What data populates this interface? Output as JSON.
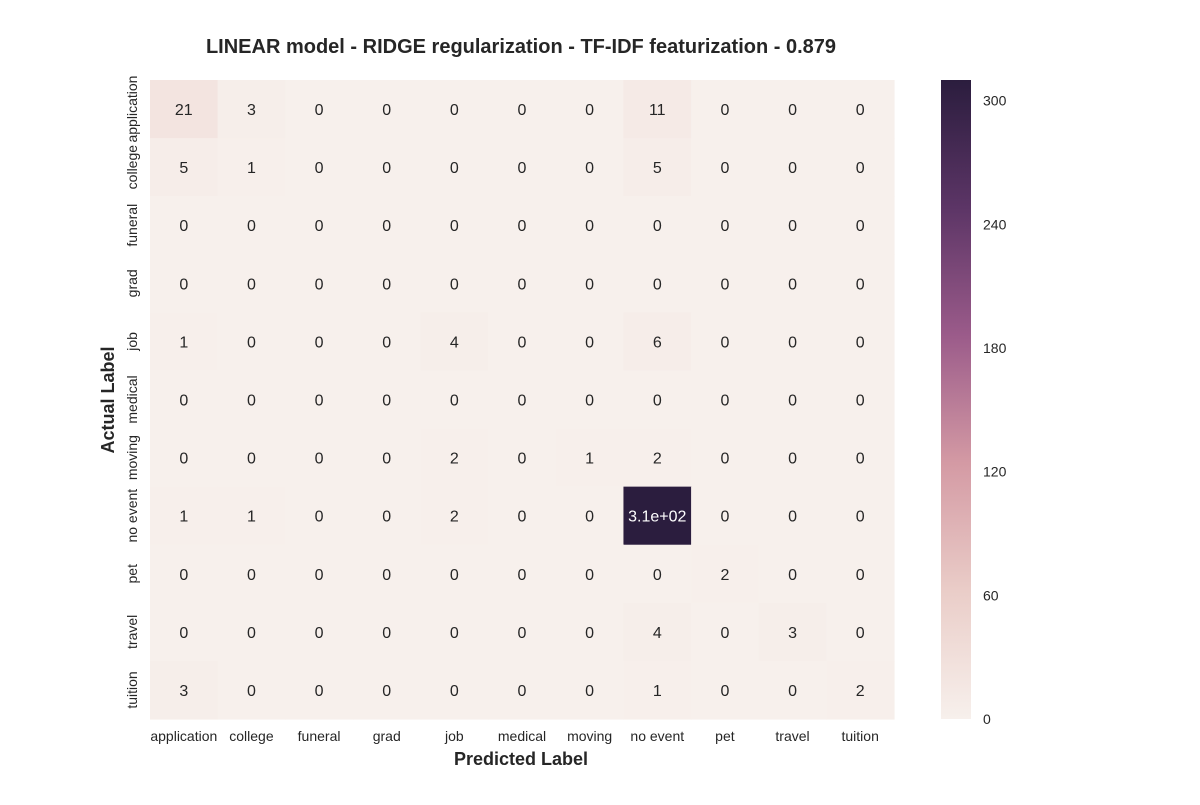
{
  "chart_data": {
    "type": "heatmap",
    "title": "LINEAR model -  RIDGE regularization - TF-IDF featurization - 0.879",
    "xlabel": "Predicted Label",
    "ylabel": "Actual Label",
    "x_categories": [
      "application",
      "college",
      "funeral",
      "grad",
      "job",
      "medical",
      "moving",
      "no event",
      "pet",
      "travel",
      "tuition"
    ],
    "y_categories": [
      "application",
      "college",
      "funeral",
      "grad",
      "job",
      "medical",
      "moving",
      "no event",
      "pet",
      "travel",
      "tuition"
    ],
    "values": [
      [
        21,
        3,
        0,
        0,
        0,
        0,
        0,
        11,
        0,
        0,
        0
      ],
      [
        5,
        1,
        0,
        0,
        0,
        0,
        0,
        5,
        0,
        0,
        0
      ],
      [
        0,
        0,
        0,
        0,
        0,
        0,
        0,
        0,
        0,
        0,
        0
      ],
      [
        0,
        0,
        0,
        0,
        0,
        0,
        0,
        0,
        0,
        0,
        0
      ],
      [
        1,
        0,
        0,
        0,
        4,
        0,
        0,
        6,
        0,
        0,
        0
      ],
      [
        0,
        0,
        0,
        0,
        0,
        0,
        0,
        0,
        0,
        0,
        0
      ],
      [
        0,
        0,
        0,
        0,
        2,
        0,
        1,
        2,
        0,
        0,
        0
      ],
      [
        1,
        1,
        0,
        0,
        2,
        0,
        0,
        310,
        0,
        0,
        0
      ],
      [
        0,
        0,
        0,
        0,
        0,
        0,
        0,
        0,
        2,
        0,
        0
      ],
      [
        0,
        0,
        0,
        0,
        0,
        0,
        0,
        4,
        0,
        3,
        0
      ],
      [
        3,
        0,
        0,
        0,
        0,
        0,
        0,
        1,
        0,
        0,
        2
      ]
    ],
    "cell_labels": [
      [
        "21",
        "3",
        "0",
        "0",
        "0",
        "0",
        "0",
        "11",
        "0",
        "0",
        "0"
      ],
      [
        "5",
        "1",
        "0",
        "0",
        "0",
        "0",
        "0",
        "5",
        "0",
        "0",
        "0"
      ],
      [
        "0",
        "0",
        "0",
        "0",
        "0",
        "0",
        "0",
        "0",
        "0",
        "0",
        "0"
      ],
      [
        "0",
        "0",
        "0",
        "0",
        "0",
        "0",
        "0",
        "0",
        "0",
        "0",
        "0"
      ],
      [
        "1",
        "0",
        "0",
        "0",
        "4",
        "0",
        "0",
        "6",
        "0",
        "0",
        "0"
      ],
      [
        "0",
        "0",
        "0",
        "0",
        "0",
        "0",
        "0",
        "0",
        "0",
        "0",
        "0"
      ],
      [
        "0",
        "0",
        "0",
        "0",
        "2",
        "0",
        "1",
        "2",
        "0",
        "0",
        "0"
      ],
      [
        "1",
        "1",
        "0",
        "0",
        "2",
        "0",
        "0",
        "3.1e+02",
        "0",
        "0",
        "0"
      ],
      [
        "0",
        "0",
        "0",
        "0",
        "0",
        "0",
        "0",
        "0",
        "2",
        "0",
        "0"
      ],
      [
        "0",
        "0",
        "0",
        "0",
        "0",
        "0",
        "0",
        "4",
        "0",
        "3",
        "0"
      ],
      [
        "3",
        "0",
        "0",
        "0",
        "0",
        "0",
        "0",
        "1",
        "0",
        "0",
        "2"
      ]
    ],
    "colorbar": {
      "min": 0,
      "max": 310,
      "ticks": [
        0,
        60,
        120,
        180,
        240,
        300
      ],
      "colors": [
        "#f7f0ec",
        "#eacdc8",
        "#d49aa4",
        "#9b5b8a",
        "#5c3566",
        "#2b1d3e"
      ]
    },
    "grid": false
  }
}
